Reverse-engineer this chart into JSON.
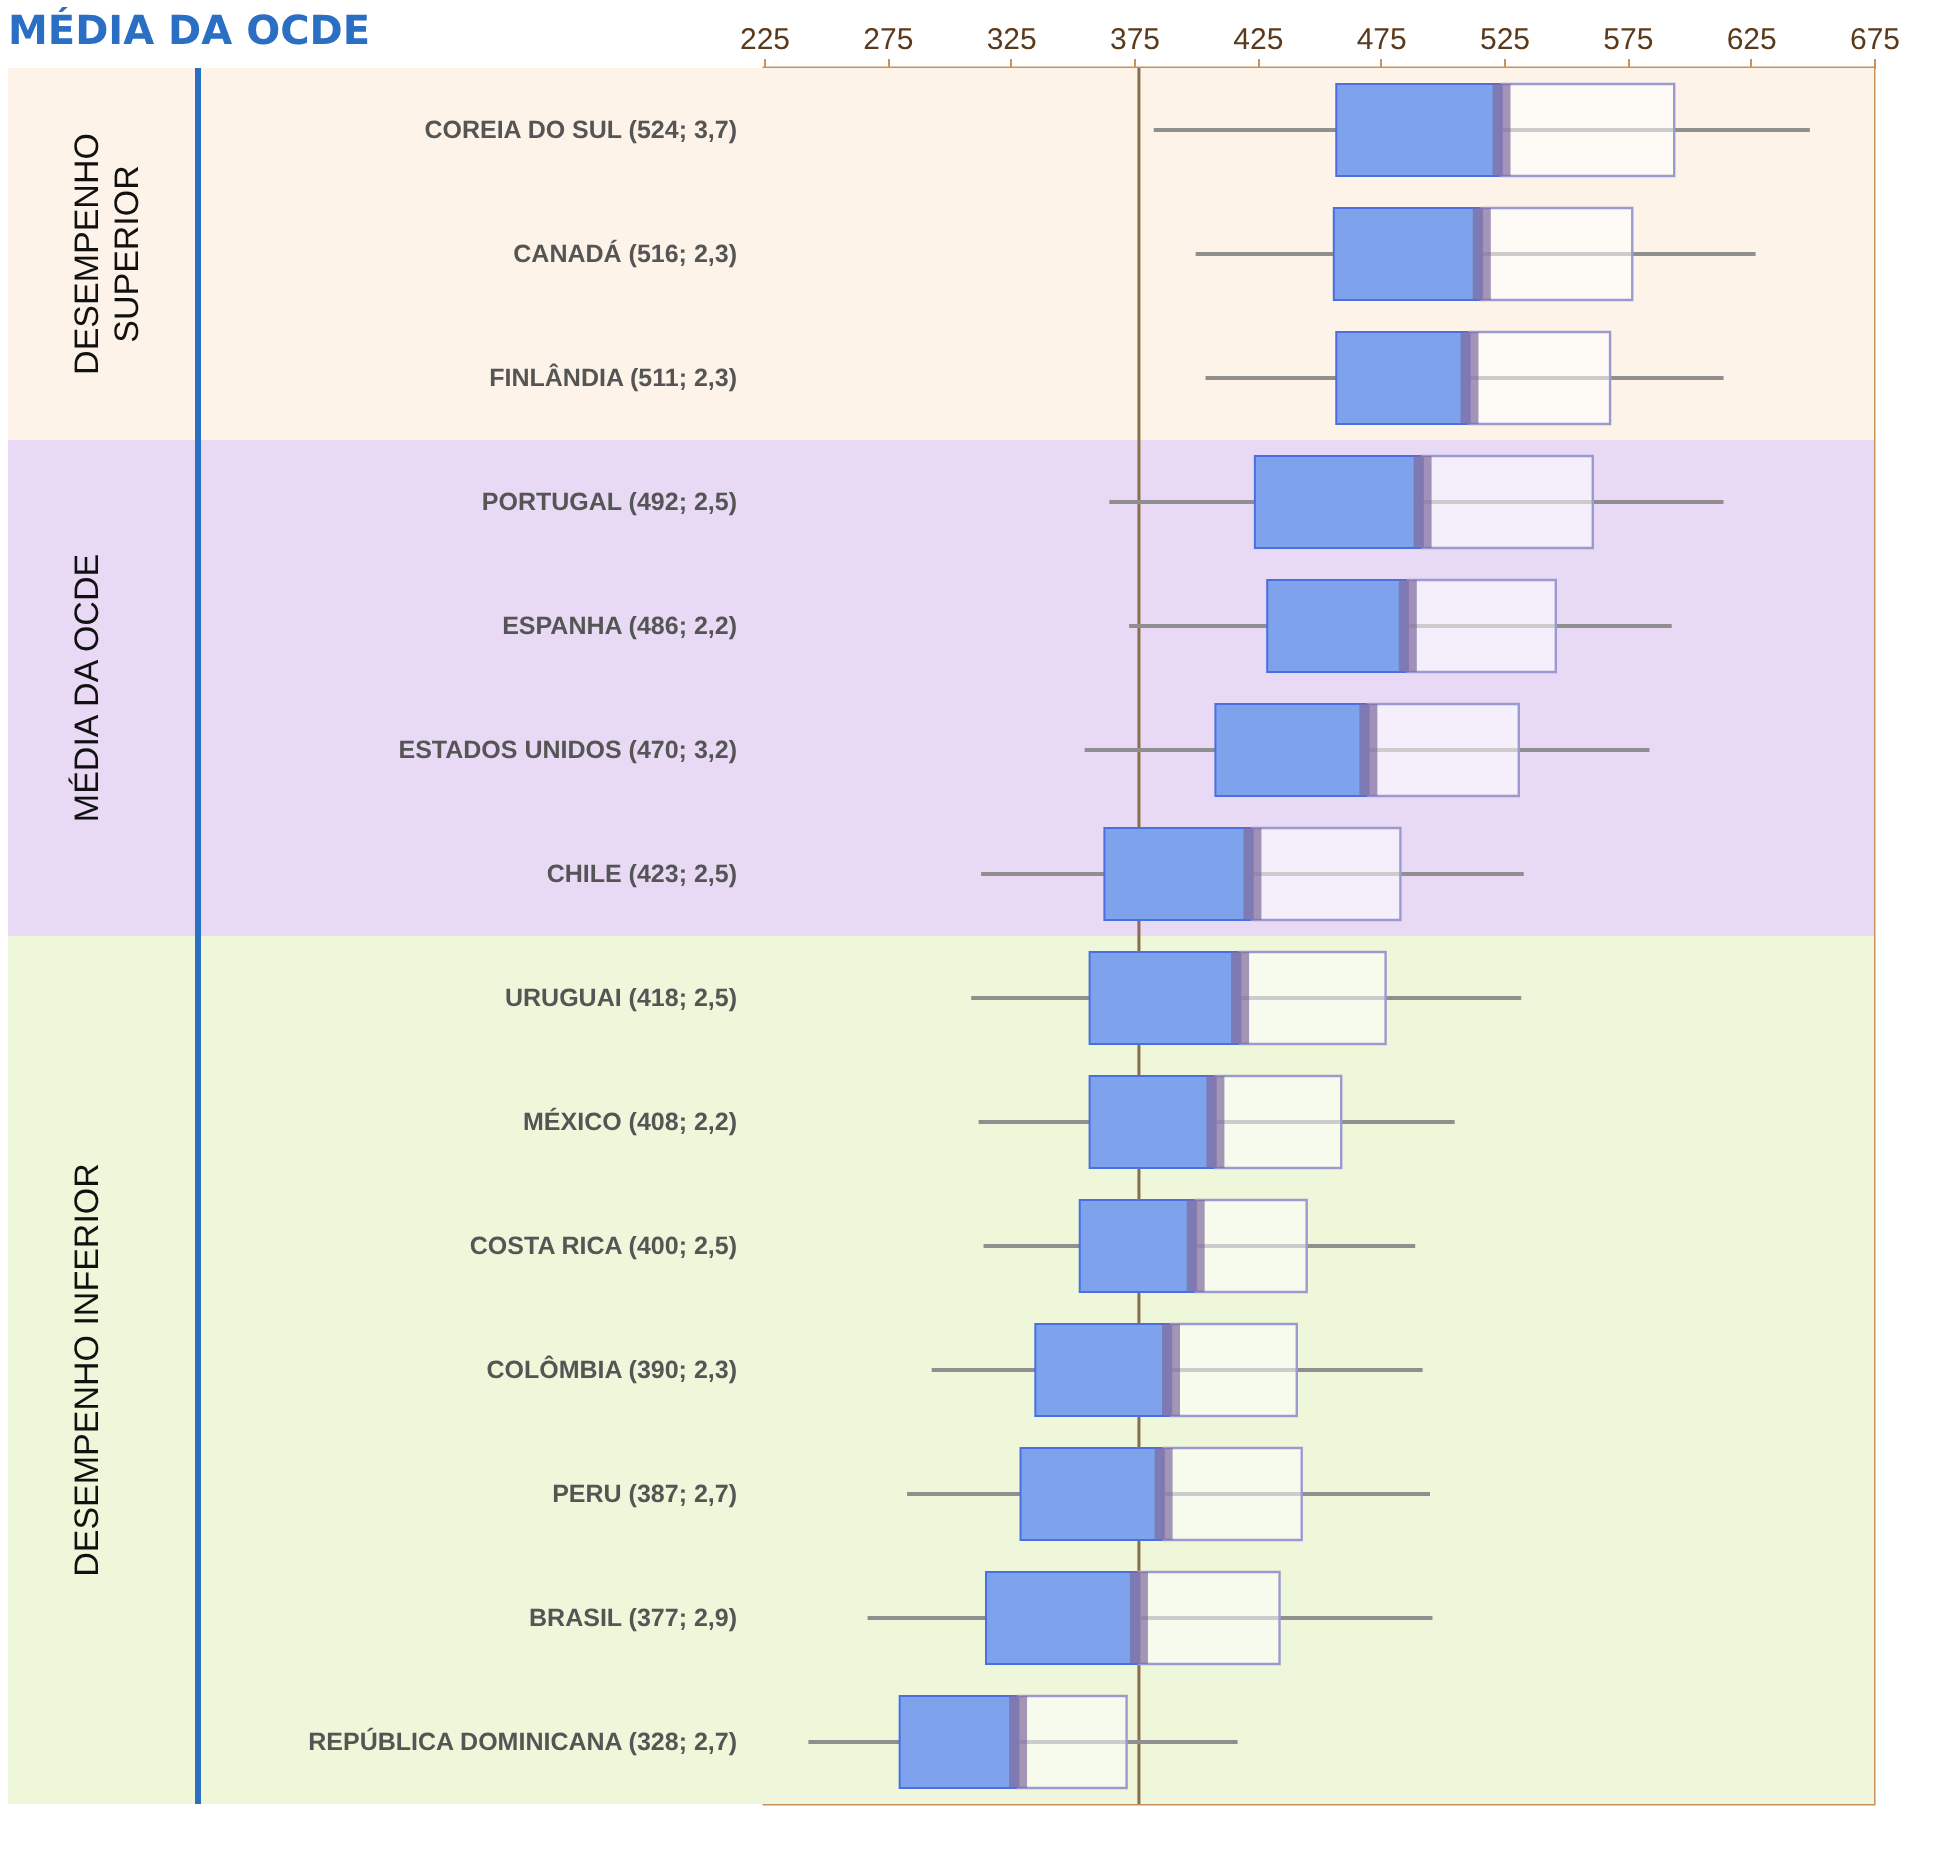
{
  "chart_data": {
    "type": "box",
    "title": "MÉDIA DA OCDE",
    "categories": [
      "COREIA DO SUL (524; 3,7)",
      "CANADÁ (516; 2,3)",
      "FINLÂNDIA (511; 2,3)",
      "PORTUGAL (492; 2,5)",
      "ESPANHA (486; 2,2)",
      "ESTADOS UNIDOS (470; 3,2)",
      "CHILE (423; 2,5)",
      "URUGUAI (418; 2,5)",
      "MÉXICO (408; 2,2)",
      "COSTA RICA (400; 2,5)",
      "COLÔMBIA (390; 2,3)",
      "PERU (387; 2,7)",
      "BRASIL (377; 2,9)",
      "REPÚBLICA DOMINICANA (328; 2,7)"
    ],
    "boxes": [
      {
        "low": 383,
        "q1": 457,
        "median": 524,
        "q3": 594,
        "high": 649
      },
      {
        "low": 400,
        "q1": 456,
        "median": 516,
        "q3": 577,
        "high": 627
      },
      {
        "low": 404,
        "q1": 457,
        "median": 511,
        "q3": 568,
        "high": 614
      },
      {
        "low": 365,
        "q1": 424,
        "median": 492,
        "q3": 561,
        "high": 614
      },
      {
        "low": 373,
        "q1": 429,
        "median": 486,
        "q3": 546,
        "high": 593
      },
      {
        "low": 355,
        "q1": 408,
        "median": 470,
        "q3": 531,
        "high": 584
      },
      {
        "low": 313,
        "q1": 363,
        "median": 423,
        "q3": 483,
        "high": 533
      },
      {
        "low": 309,
        "q1": 357,
        "median": 418,
        "q3": 477,
        "high": 532
      },
      {
        "low": 312,
        "q1": 357,
        "median": 408,
        "q3": 459,
        "high": 505
      },
      {
        "low": 314,
        "q1": 353,
        "median": 400,
        "q3": 445,
        "high": 489
      },
      {
        "low": 293,
        "q1": 335,
        "median": 390,
        "q3": 441,
        "high": 492
      },
      {
        "low": 283,
        "q1": 329,
        "median": 387,
        "q3": 443,
        "high": 495
      },
      {
        "low": 267,
        "q1": 315,
        "median": 377,
        "q3": 434,
        "high": 496
      },
      {
        "low": 243,
        "q1": 280,
        "median": 328,
        "q3": 372,
        "high": 417
      }
    ],
    "colors": [
      "#7ea3ec",
      "#7ea3ec",
      "#7ea3ec",
      "#7ea3ec",
      "#7ea3ec",
      "#7ea3ec",
      "#7ea3ec",
      "#7ea3ec",
      "#7ea3ec",
      "#7ea3ec",
      "#7ea3ec",
      "#7ea3ec",
      "#7ea3ec",
      "#7ea3ec"
    ],
    "orientation": "horizontal",
    "xlim": [
      225,
      675
    ],
    "xticks": [
      225,
      275,
      325,
      375,
      425,
      475,
      525,
      575,
      625,
      675
    ],
    "ref_lines": [
      {
        "axis": "x",
        "value": 377,
        "color": "#8a6d4a"
      }
    ],
    "bands": [
      {
        "axis": "y",
        "from": "COREIA DO SUL (524; 3,7)",
        "to": "FINLÂNDIA (511; 2,3)",
        "label": "DESEMPENHO SUPERIOR",
        "color": "#fdf3e8"
      },
      {
        "axis": "y",
        "from": "PORTUGAL (492; 2,5)",
        "to": "CHILE (423; 2,5)",
        "label": "MÉDIA DA OCDE",
        "color": "#e8d9f5"
      },
      {
        "axis": "y",
        "from": "URUGUAI (418; 2,5)",
        "to": "REPÚBLICA DOMINICANA (328; 2,7)",
        "label": "DESEMPENHO INFERIOR",
        "color": "#eef7d9"
      }
    ]
  }
}
